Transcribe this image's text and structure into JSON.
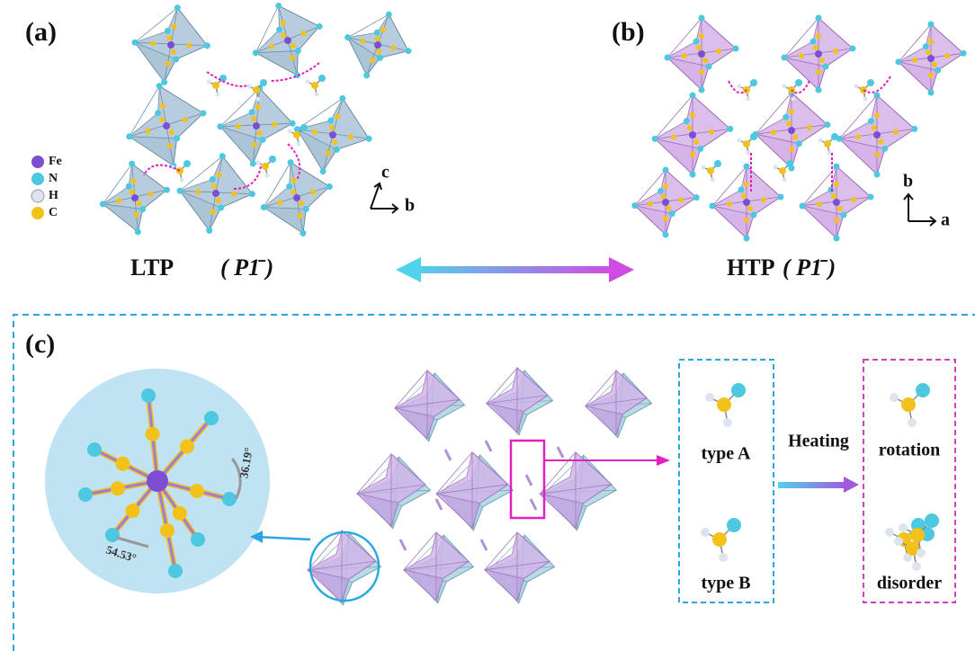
{
  "panels": [
    {
      "label": "(a)",
      "phase": "LTP",
      "space_group": "( P1̄ )",
      "axes": [
        "c",
        "b"
      ]
    },
    {
      "label": "(b)",
      "phase": "HTP",
      "space_group": "( P1̄ )",
      "axes": [
        "b",
        "a"
      ]
    }
  ],
  "legend": [
    "Fe",
    "N",
    "H",
    "C"
  ],
  "panel_c": {
    "label": "(c)",
    "angles": [
      "36.19°",
      "54.53°"
    ],
    "types": [
      "type A",
      "type B"
    ],
    "process": "Heating",
    "outcomes": [
      "rotation",
      "disorder"
    ]
  }
}
